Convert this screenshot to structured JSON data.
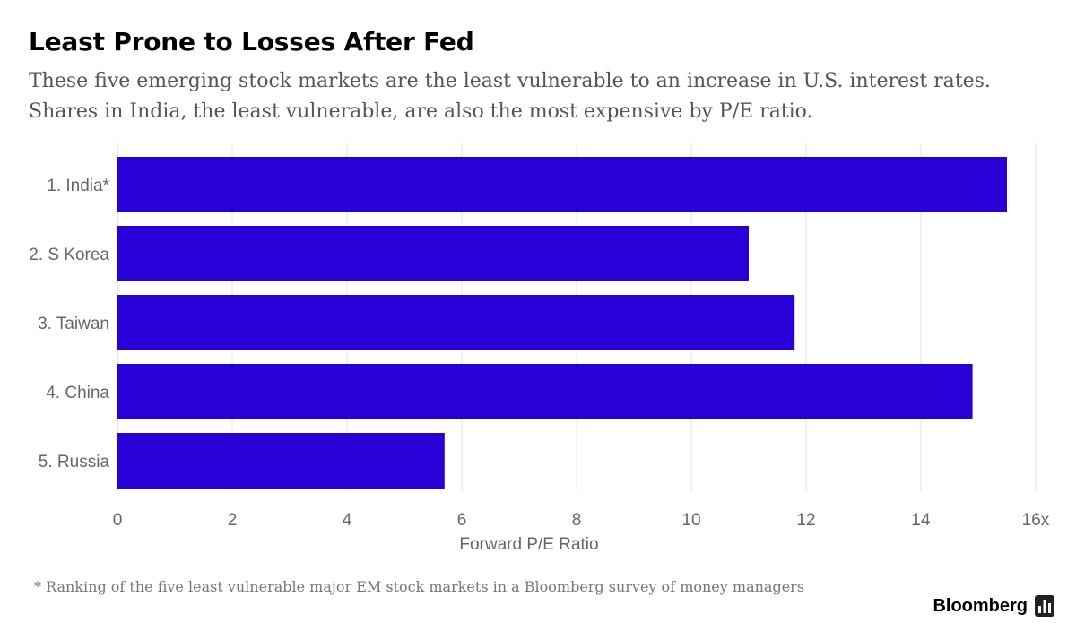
{
  "header": {
    "title": "Least Prone to Losses After Fed",
    "subtitle": "These five emerging stock markets are the least vulnerable to an increase in U.S. interest rates. Shares in India, the least vulnerable, are also the most expensive by P/E ratio."
  },
  "chart_data": {
    "type": "bar",
    "orientation": "horizontal",
    "categories": [
      "1. India*",
      "2. S Korea",
      "3. Taiwan",
      "4. China",
      "5. Russia"
    ],
    "values": [
      15.5,
      11.0,
      11.8,
      14.9,
      5.7
    ],
    "xlabel": "Forward P/E Ratio",
    "ylabel": "",
    "xlim": [
      0,
      16
    ],
    "x_ticks": [
      "0",
      "2",
      "4",
      "6",
      "8",
      "10",
      "12",
      "14",
      "16x"
    ],
    "grid": "vertical",
    "bar_color": "#2A00D9"
  },
  "footer": {
    "footnote": "* Ranking of the five least vulnerable major EM stock markets in a Bloomberg survey of money managers",
    "brand": "Bloomberg",
    "brand_icon": "bloomberg-chart-icon"
  }
}
